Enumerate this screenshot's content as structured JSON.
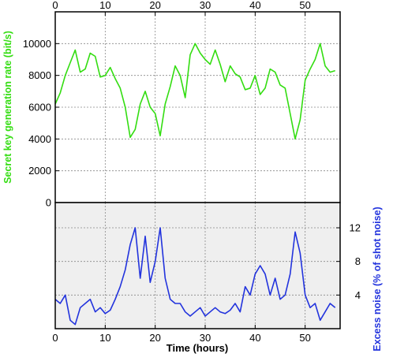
{
  "chart_data": [
    {
      "panel": "top",
      "type": "line",
      "ylabel": "Secret key generation rate (bit/s)",
      "ylabel_color": "#33dd11",
      "ylim": [
        0,
        12000
      ],
      "yticks": [
        0,
        2000,
        4000,
        6000,
        8000,
        10000
      ],
      "xlim": [
        0,
        57
      ],
      "xticks": [
        0,
        10,
        20,
        30,
        40,
        50
      ],
      "xtick_position": "top",
      "grid": true,
      "background": "#ffffff",
      "series": [
        {
          "color": "#33dd11",
          "x": [
            0,
            1,
            2,
            3,
            4,
            5,
            6,
            7,
            8,
            9,
            10,
            11,
            12,
            13,
            14,
            15,
            16,
            17,
            18,
            19,
            20,
            21,
            22,
            23,
            24,
            25,
            26,
            27,
            28,
            29,
            30,
            31,
            32,
            33,
            34,
            35,
            36,
            37,
            38,
            39,
            40,
            41,
            42,
            43,
            44,
            45,
            46,
            47,
            48,
            49,
            50,
            51,
            52,
            53,
            54,
            55,
            56
          ],
          "y": [
            6200,
            6900,
            8000,
            8800,
            9600,
            8200,
            8400,
            9400,
            9200,
            7900,
            8000,
            8500,
            7800,
            7200,
            6000,
            4100,
            4600,
            6200,
            7000,
            6000,
            5600,
            4200,
            6200,
            7300,
            8600,
            8000,
            6600,
            9300,
            10000,
            9400,
            9000,
            8700,
            9600,
            8700,
            7600,
            8600,
            8100,
            7900,
            7100,
            7200,
            8000,
            6800,
            7200,
            8400,
            8200,
            7400,
            7200,
            5600,
            4000,
            5200,
            7700,
            8400,
            9000,
            10000,
            8600,
            8200,
            8300
          ]
        }
      ]
    },
    {
      "panel": "bottom",
      "type": "line",
      "xlabel": "Time (hours)",
      "ylabel": "Excess noise (% of shot noise)",
      "ylabel_color": "#2233dd",
      "ylim": [
        0,
        15
      ],
      "yticks": [
        4,
        8,
        12
      ],
      "ytick_position": "right",
      "xlim": [
        0,
        57
      ],
      "xticks": [
        0,
        10,
        20,
        30,
        40,
        50
      ],
      "grid": true,
      "background": "#efefef",
      "series": [
        {
          "color": "#2233dd",
          "x": [
            0,
            1,
            2,
            3,
            4,
            5,
            6,
            7,
            8,
            9,
            10,
            11,
            12,
            13,
            14,
            15,
            16,
            17,
            18,
            19,
            20,
            21,
            22,
            23,
            24,
            25,
            26,
            27,
            28,
            29,
            30,
            31,
            32,
            33,
            34,
            35,
            36,
            37,
            38,
            39,
            40,
            41,
            42,
            43,
            44,
            45,
            46,
            47,
            48,
            49,
            50,
            51,
            52,
            53,
            54,
            55,
            56
          ],
          "y": [
            3.5,
            3.0,
            4.0,
            1.0,
            0.5,
            2.5,
            3.0,
            3.5,
            2.0,
            2.5,
            1.8,
            2.2,
            3.5,
            5.0,
            7.0,
            10.0,
            12.0,
            6.0,
            11.0,
            5.5,
            8.0,
            12.0,
            6.0,
            3.5,
            3.0,
            3.0,
            2.0,
            1.5,
            2.0,
            2.5,
            1.5,
            2.0,
            2.5,
            2.0,
            1.8,
            2.2,
            3.0,
            2.0,
            5.0,
            4.0,
            6.5,
            7.5,
            6.5,
            4.0,
            6.0,
            3.5,
            4.0,
            6.5,
            11.5,
            9.0,
            4.0,
            2.5,
            3.0,
            1.0,
            2.0,
            3.0,
            2.5
          ]
        }
      ]
    }
  ]
}
